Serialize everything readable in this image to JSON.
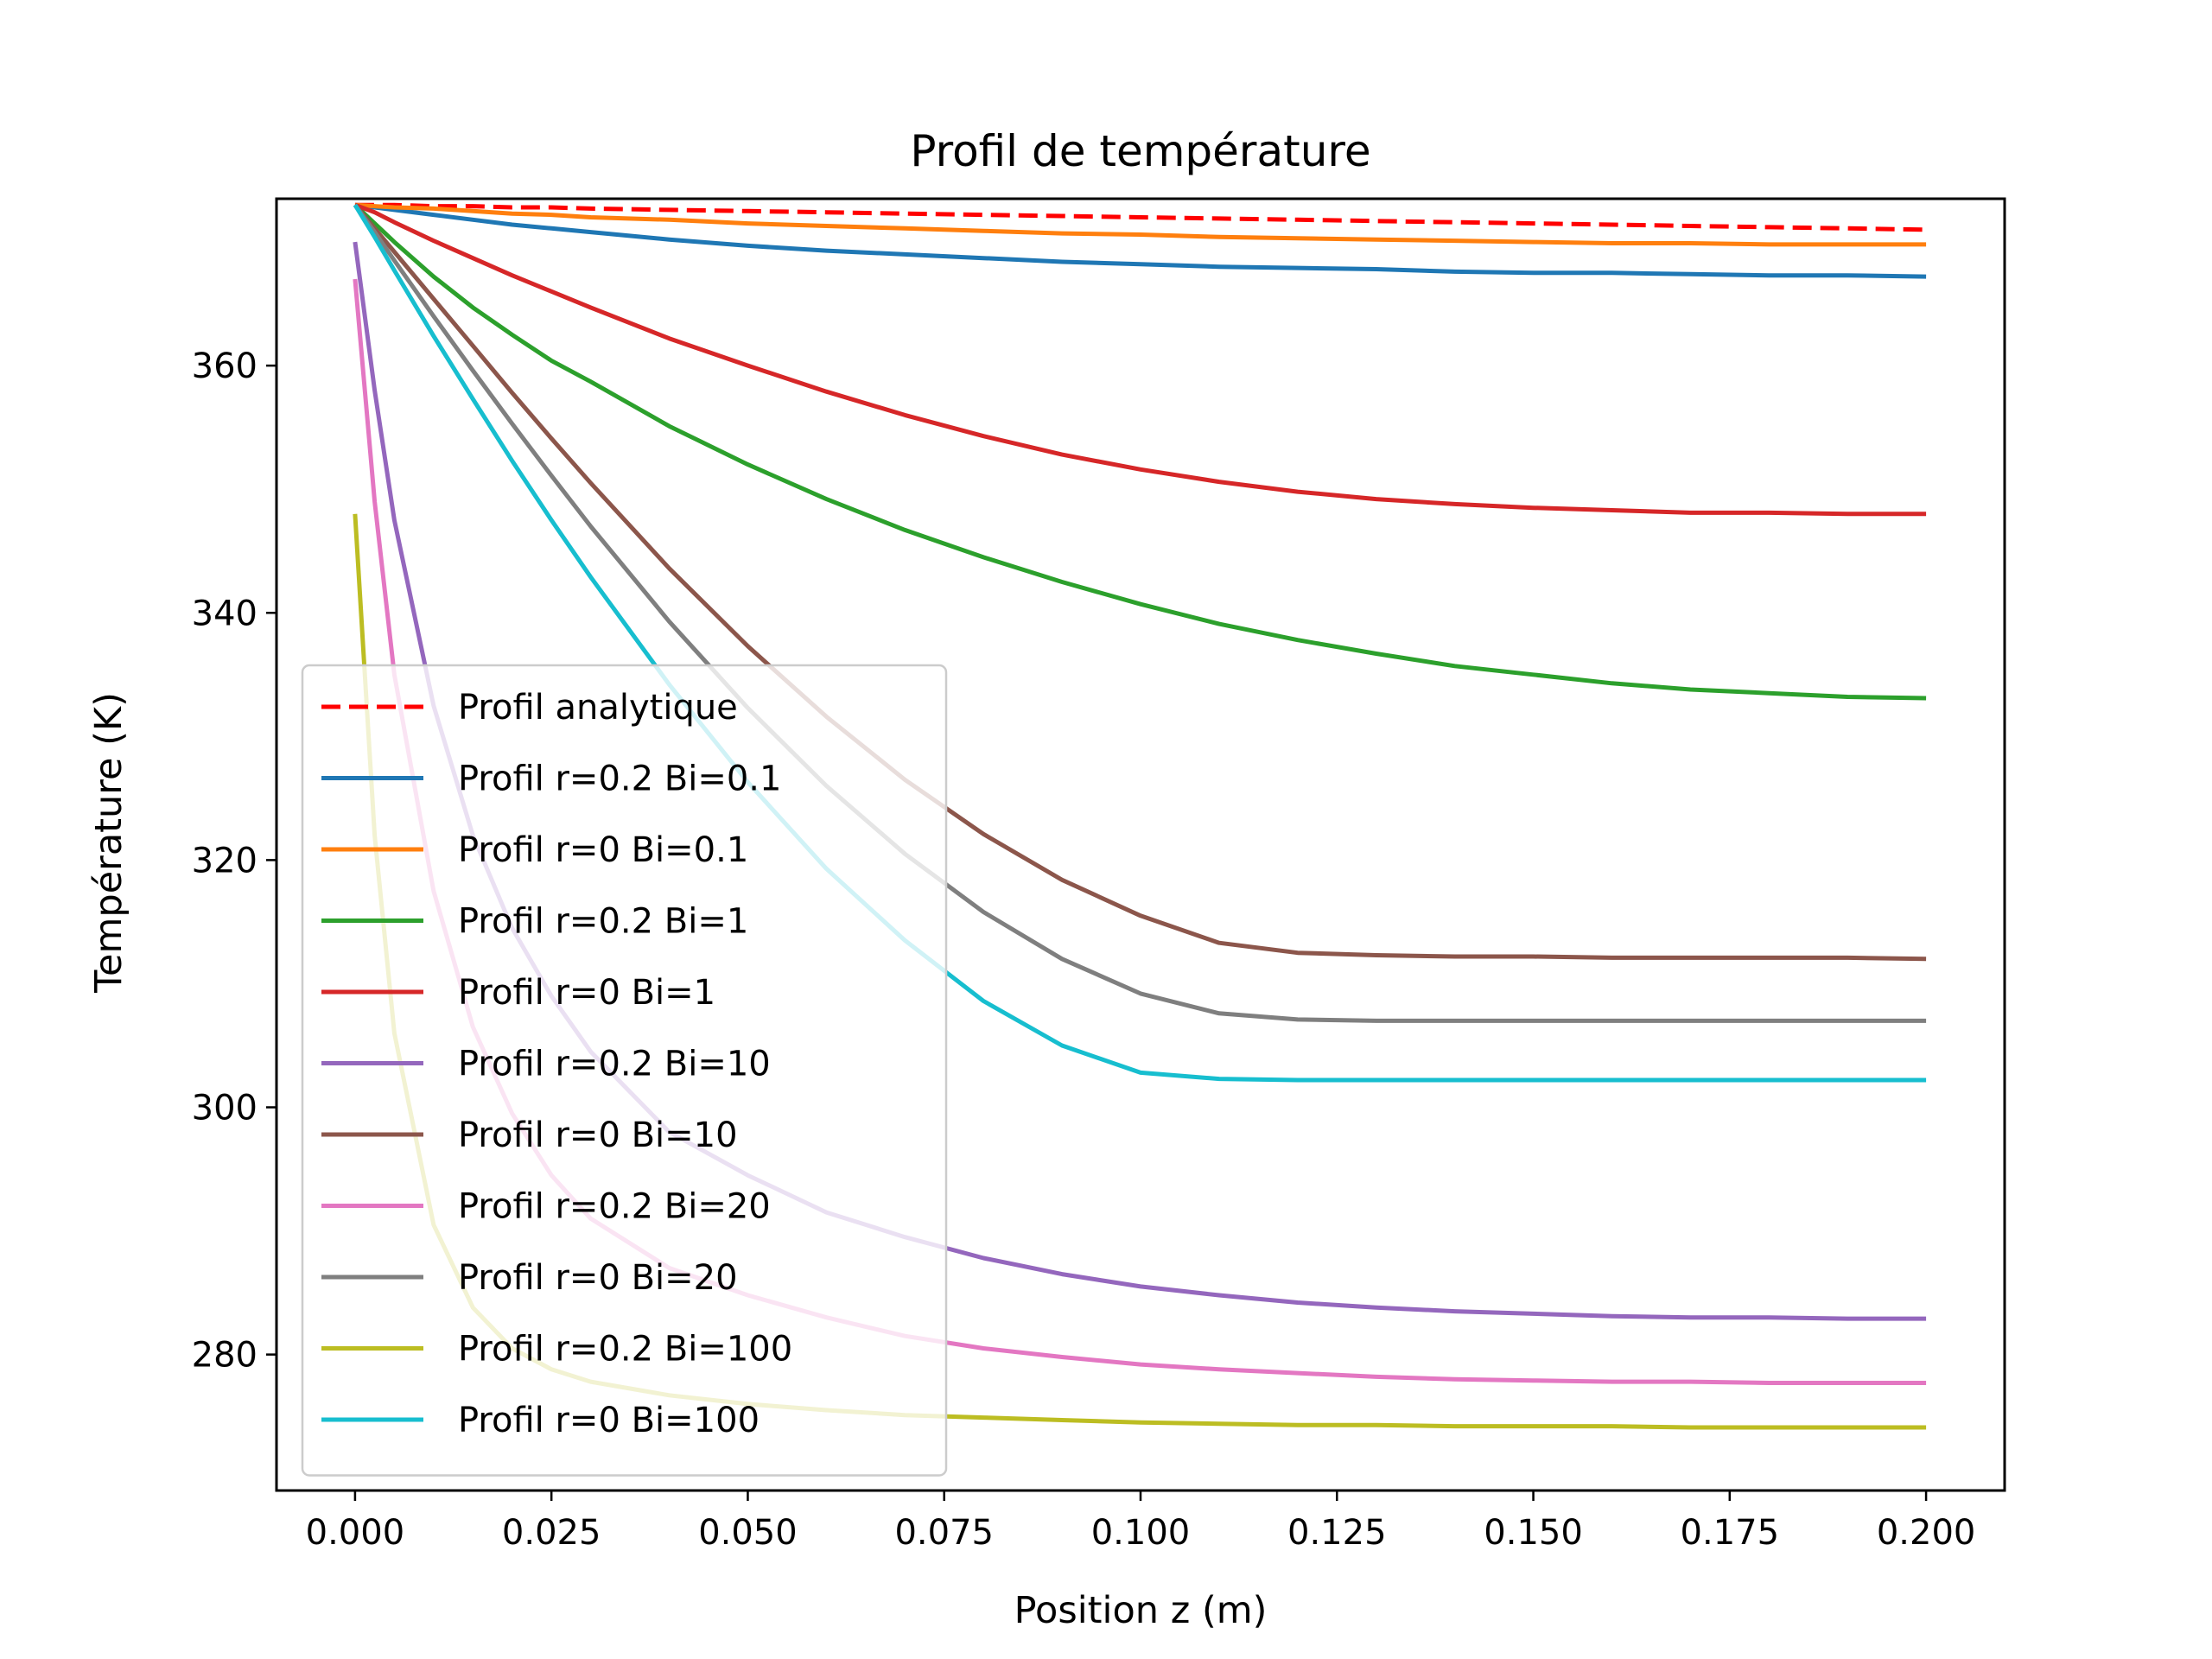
{
  "chart_data": {
    "type": "line",
    "title": "Profil de température",
    "xlabel": "Position z (m)",
    "ylabel": "Température (K)",
    "xlim": [
      -0.01,
      0.21
    ],
    "ylim": [
      269,
      373.5
    ],
    "xticks": [
      0.0,
      0.025,
      0.05,
      0.075,
      0.1,
      0.125,
      0.15,
      0.175,
      0.2
    ],
    "xtick_labels": [
      "0.000",
      "0.025",
      "0.050",
      "0.075",
      "0.100",
      "0.125",
      "0.150",
      "0.175",
      "0.200"
    ],
    "yticks": [
      280,
      300,
      320,
      340,
      360
    ],
    "ytick_labels": [
      "280",
      "300",
      "320",
      "340",
      "360"
    ],
    "grid": false,
    "legend_position": "lower-left",
    "x": [
      0.0,
      0.0025,
      0.005,
      0.01,
      0.015,
      0.02,
      0.025,
      0.03,
      0.04,
      0.05,
      0.06,
      0.07,
      0.08,
      0.09,
      0.1,
      0.11,
      0.12,
      0.13,
      0.14,
      0.15,
      0.16,
      0.17,
      0.18,
      0.19,
      0.2
    ],
    "series": [
      {
        "name": "Profil analytique",
        "color": "#ff0000",
        "dashed": true,
        "values": [
          373.0,
          373.0,
          373.0,
          372.9,
          372.9,
          372.8,
          372.8,
          372.7,
          372.6,
          372.5,
          372.4,
          372.3,
          372.2,
          372.1,
          372.0,
          371.9,
          371.8,
          371.7,
          371.6,
          371.5,
          371.4,
          371.3,
          371.2,
          371.1,
          371.0
        ]
      },
      {
        "name": "Profil r=0.2 Bi=0.1",
        "color": "#1f77b4",
        "values": [
          373.0,
          372.8,
          372.6,
          372.2,
          371.8,
          371.4,
          371.1,
          370.8,
          370.2,
          369.7,
          369.3,
          369.0,
          368.7,
          368.4,
          368.2,
          368.0,
          367.9,
          367.8,
          367.6,
          367.5,
          367.5,
          367.4,
          367.3,
          367.3,
          367.2
        ]
      },
      {
        "name": "Profil r=0 Bi=0.1",
        "color": "#ff7f0e",
        "values": [
          373.0,
          372.9,
          372.8,
          372.7,
          372.5,
          372.3,
          372.2,
          372.0,
          371.8,
          371.5,
          371.3,
          371.1,
          370.9,
          370.7,
          370.6,
          370.4,
          370.3,
          370.2,
          370.1,
          370.0,
          369.9,
          369.9,
          369.8,
          369.8,
          369.8
        ]
      },
      {
        "name": "Profil r=0.2 Bi=1",
        "color": "#2ca02c",
        "values": [
          373.0,
          371.5,
          370.0,
          367.2,
          364.7,
          362.5,
          360.4,
          358.7,
          355.1,
          352.0,
          349.2,
          346.7,
          344.5,
          342.5,
          340.7,
          339.1,
          337.8,
          336.7,
          335.7,
          335.0,
          334.3,
          333.8,
          333.5,
          333.2,
          333.1
        ]
      },
      {
        "name": "Profil r=0 Bi=1",
        "color": "#d62728",
        "values": [
          373.0,
          372.4,
          371.6,
          370.1,
          368.7,
          367.3,
          366.0,
          364.7,
          362.2,
          360.0,
          357.9,
          356.0,
          354.3,
          352.8,
          351.6,
          350.6,
          349.8,
          349.2,
          348.8,
          348.5,
          348.3,
          348.1,
          348.1,
          348.0,
          348.0
        ]
      },
      {
        "name": "Profil r=0.2 Bi=10",
        "color": "#9467bd",
        "values": [
          370.0,
          358.0,
          347.5,
          332.5,
          322.0,
          314.5,
          309.0,
          304.5,
          298.0,
          294.5,
          291.5,
          289.5,
          287.8,
          286.5,
          285.5,
          284.8,
          284.2,
          283.8,
          283.5,
          283.3,
          283.1,
          283.0,
          283.0,
          282.9,
          282.9
        ]
      },
      {
        "name": "Profil r=0 Bi=10",
        "color": "#8c564b",
        "values": [
          373.0,
          371.1,
          369.2,
          365.4,
          361.6,
          357.8,
          354.1,
          350.5,
          343.6,
          337.3,
          331.6,
          326.5,
          322.1,
          318.4,
          315.5,
          313.3,
          312.5,
          312.3,
          312.2,
          312.2,
          312.1,
          312.1,
          312.1,
          312.1,
          312.0
        ]
      },
      {
        "name": "Profil r=0.2 Bi=20",
        "color": "#e377c2",
        "values": [
          367.0,
          349.0,
          335.0,
          317.5,
          306.5,
          299.5,
          294.5,
          291.0,
          287.0,
          284.8,
          283.0,
          281.5,
          280.5,
          279.8,
          279.2,
          278.8,
          278.5,
          278.2,
          278.0,
          277.9,
          277.8,
          277.8,
          277.7,
          277.7,
          277.7
        ]
      },
      {
        "name": "Profil r=0 Bi=20",
        "color": "#7f7f7f",
        "values": [
          373.0,
          370.8,
          368.5,
          364.0,
          359.6,
          355.3,
          351.1,
          347.0,
          339.3,
          332.3,
          326.0,
          320.5,
          315.8,
          312.0,
          309.2,
          307.6,
          307.1,
          307.0,
          307.0,
          307.0,
          307.0,
          307.0,
          307.0,
          307.0,
          307.0
        ]
      },
      {
        "name": "Profil r=0.2 Bi=100",
        "color": "#bcbd22",
        "values": [
          348.0,
          322.0,
          306.0,
          290.5,
          283.8,
          280.5,
          278.8,
          277.8,
          276.7,
          276.0,
          275.5,
          275.1,
          274.9,
          274.7,
          274.5,
          274.4,
          274.3,
          274.3,
          274.2,
          274.2,
          274.2,
          274.1,
          274.1,
          274.1,
          274.1
        ]
      },
      {
        "name": "Profil r=0 Bi=100",
        "color": "#17becf",
        "values": [
          373.0,
          370.4,
          367.7,
          362.4,
          357.3,
          352.3,
          347.5,
          342.9,
          334.2,
          326.3,
          319.3,
          313.5,
          308.6,
          305.0,
          302.8,
          302.3,
          302.2,
          302.2,
          302.2,
          302.2,
          302.2,
          302.2,
          302.2,
          302.2,
          302.2
        ]
      }
    ]
  }
}
